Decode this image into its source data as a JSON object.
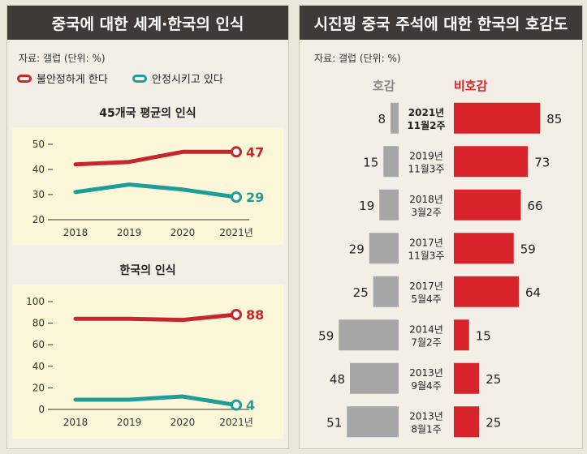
{
  "left": {
    "title": "중국에 대한 세계·한국의 인식",
    "source": "자료: 갤럽 (단위: %)",
    "legend": [
      {
        "name": "불안정하게 한다",
        "color": "#c8262e"
      },
      {
        "name": "안정시키고 있다",
        "color": "#1f9e99"
      }
    ]
  },
  "right": {
    "title": "시진핑 중국 주석에 대한 한국의 호감도",
    "source": "자료: 갤럽 (단위: %)",
    "fav_label": "호감",
    "unfav_label": "비호감"
  },
  "chart_data": [
    {
      "type": "line",
      "title": "45개국 평균의 인식",
      "categories": [
        "2018",
        "2019",
        "2020",
        "2021년"
      ],
      "ylim": [
        20,
        50
      ],
      "yticks": [
        "20",
        "30",
        "40",
        "50"
      ],
      "series": [
        {
          "name": "불안정하게 한다",
          "values": [
            42,
            43,
            47,
            47
          ],
          "color": "#c8262e",
          "end_label": "47"
        },
        {
          "name": "안정시키고 있다",
          "values": [
            31,
            34,
            32,
            29
          ],
          "color": "#1f9e99",
          "end_label": "29"
        }
      ]
    },
    {
      "type": "line",
      "title": "한국의 인식",
      "categories": [
        "2018",
        "2019",
        "2020",
        "2021년"
      ],
      "ylim": [
        0,
        100
      ],
      "yticks": [
        "0",
        "20",
        "40",
        "60",
        "80",
        "100"
      ],
      "series": [
        {
          "name": "불안정하게 한다",
          "values": [
            84,
            84,
            83,
            88
          ],
          "color": "#c8262e",
          "end_label": "88"
        },
        {
          "name": "안정시키고 있다",
          "values": [
            9,
            9,
            12,
            4
          ],
          "color": "#1f9e99",
          "end_label": "4"
        }
      ]
    },
    {
      "type": "bar",
      "title": "시진핑 중국 주석에 대한 한국의 호감도",
      "categories": [
        [
          "2021년",
          "11월2주"
        ],
        [
          "2019년",
          "11월3주"
        ],
        [
          "2018년",
          "3월2주"
        ],
        [
          "2017년",
          "11월3주"
        ],
        [
          "2017년",
          "5월4주"
        ],
        [
          "2014년",
          "7월2주"
        ],
        [
          "2013년",
          "9월4주"
        ],
        [
          "2013년",
          "8월1주"
        ]
      ],
      "series": [
        {
          "name": "호감",
          "values": [
            8,
            15,
            19,
            29,
            25,
            59,
            48,
            51
          ],
          "color": "#a6a6a6"
        },
        {
          "name": "비호감",
          "values": [
            85,
            73,
            66,
            59,
            64,
            15,
            25,
            25
          ],
          "color": "#d9232b"
        }
      ]
    }
  ]
}
